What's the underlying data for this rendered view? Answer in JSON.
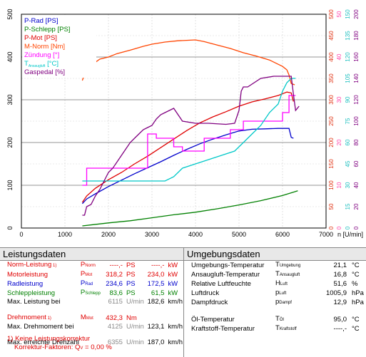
{
  "chart_data": {
    "type": "line",
    "x_unit_label": "n [U/min]",
    "xlim": [
      0,
      7000
    ],
    "x_ticks": [
      "0",
      "1000",
      "2000",
      "3000",
      "4000",
      "5000",
      "6000",
      "7000"
    ],
    "left_axis": {
      "ylim": [
        0,
        500
      ],
      "ticks": [
        "0",
        "100",
        "200",
        "300",
        "400",
        "500"
      ]
    },
    "right_axes": [
      {
        "color": "#e03010",
        "ticks": [
          "0",
          "50",
          "100",
          "150",
          "200",
          "250",
          "300",
          "350",
          "400",
          "450",
          "500"
        ]
      },
      {
        "color": "#ff44aa",
        "ticks": [
          "0",
          "10",
          "20",
          "30",
          "40",
          "50"
        ]
      },
      {
        "color": "#20c0c0",
        "ticks": [
          "0",
          "15",
          "30",
          "45",
          "60",
          "75",
          "90",
          "105",
          "120",
          "135",
          "150"
        ]
      },
      {
        "color": "#800080",
        "ticks": [
          "0",
          "20",
          "40",
          "60",
          "80",
          "100",
          "120",
          "140",
          "160",
          "180",
          "200"
        ]
      }
    ],
    "legend": [
      {
        "label": "P-Rad [PS]",
        "color": "#0000cc"
      },
      {
        "label": "P-Schlepp [PS]",
        "color": "#008000"
      },
      {
        "label": "P-Mot [PS]",
        "color": "#e00000"
      },
      {
        "label": "M-Norm [Nm]",
        "color": "#ff4400"
      },
      {
        "label": "Zündung [°]",
        "color": "#ff00ff"
      },
      {
        "label": "T",
        "sub": "Ansaugluft",
        "after": " [°C]",
        "color": "#00c8c8"
      },
      {
        "label": "Gaspedal [%]",
        "color": "#800080"
      }
    ],
    "series": [
      {
        "name": "P-Rad [PS]",
        "color": "#0000cc",
        "points": [
          [
            1400,
            57
          ],
          [
            1500,
            68
          ],
          [
            1700,
            80
          ],
          [
            2000,
            97
          ],
          [
            2300,
            112
          ],
          [
            2600,
            127
          ],
          [
            2900,
            141
          ],
          [
            3200,
            155
          ],
          [
            3500,
            170
          ],
          [
            3800,
            184
          ],
          [
            4100,
            197
          ],
          [
            4400,
            208
          ],
          [
            4700,
            218
          ],
          [
            5000,
            227
          ],
          [
            5300,
            231
          ],
          [
            5600,
            232
          ],
          [
            5900,
            233
          ],
          [
            6150,
            233
          ],
          [
            6200,
            212
          ],
          [
            6250,
            210
          ]
        ]
      },
      {
        "name": "P-Schlepp [PS]",
        "color": "#008000",
        "points": [
          [
            1400,
            5
          ],
          [
            2000,
            12
          ],
          [
            2500,
            17
          ],
          [
            3000,
            24
          ],
          [
            3500,
            31
          ],
          [
            4000,
            37
          ],
          [
            4500,
            45
          ],
          [
            5000,
            54
          ],
          [
            5500,
            64
          ],
          [
            6000,
            76
          ],
          [
            6350,
            87
          ]
        ]
      },
      {
        "name": "P-Mot [PS]",
        "color": "#e00000",
        "points": [
          [
            1400,
            60
          ],
          [
            1500,
            75
          ],
          [
            1700,
            93
          ],
          [
            2000,
            113
          ],
          [
            2300,
            130
          ],
          [
            2600,
            150
          ],
          [
            2900,
            168
          ],
          [
            3200,
            188
          ],
          [
            3500,
            208
          ],
          [
            3800,
            228
          ],
          [
            4100,
            246
          ],
          [
            4400,
            260
          ],
          [
            4700,
            272
          ],
          [
            5000,
            285
          ],
          [
            5300,
            295
          ],
          [
            5600,
            302
          ],
          [
            5900,
            310
          ],
          [
            6100,
            318
          ],
          [
            6200,
            316
          ],
          [
            6250,
            296
          ]
        ]
      },
      {
        "name": "M-Norm [Nm]",
        "color": "#ff4400",
        "points": [
          [
            1400,
            345
          ],
          [
            1450,
            360
          ],
          [
            1600,
            380
          ],
          [
            1800,
            395
          ],
          [
            2000,
            400
          ],
          [
            2200,
            408
          ],
          [
            2500,
            416
          ],
          [
            2800,
            425
          ],
          [
            3000,
            430
          ],
          [
            3300,
            435
          ],
          [
            3600,
            438
          ],
          [
            4000,
            440
          ],
          [
            4200,
            436
          ],
          [
            4500,
            428
          ],
          [
            4800,
            420
          ],
          [
            5100,
            410
          ],
          [
            5400,
            402
          ],
          [
            5700,
            393
          ],
          [
            6000,
            378
          ],
          [
            6100,
            370
          ],
          [
            6150,
            358
          ],
          [
            6200,
            338
          ],
          [
            6280,
            335
          ]
        ]
      },
      {
        "name": "Zündung [°]",
        "color": "#ff00ff",
        "points": [
          [
            1400,
            10
          ],
          [
            1500,
            10
          ],
          [
            1500,
            14
          ],
          [
            2900,
            14
          ],
          [
            2900,
            22
          ],
          [
            3100,
            22
          ],
          [
            3100,
            21
          ],
          [
            3500,
            21
          ],
          [
            3500,
            19
          ],
          [
            3700,
            19
          ],
          [
            3700,
            18
          ],
          [
            4200,
            18
          ],
          [
            4200,
            21
          ],
          [
            4800,
            21
          ],
          [
            4800,
            23
          ],
          [
            5100,
            23
          ],
          [
            5100,
            25
          ],
          [
            6000,
            25
          ],
          [
            6000,
            27
          ],
          [
            6150,
            27
          ],
          [
            6150,
            31
          ],
          [
            6300,
            31
          ]
        ]
      },
      {
        "name": "T Ansaugluft [°C]",
        "color": "#00c8c8",
        "points": [
          [
            1400,
            33
          ],
          [
            2000,
            33
          ],
          [
            2500,
            33
          ],
          [
            3000,
            33
          ],
          [
            3300,
            33
          ],
          [
            3500,
            36
          ],
          [
            3700,
            42
          ],
          [
            4000,
            45
          ],
          [
            4300,
            48
          ],
          [
            4600,
            51
          ],
          [
            4900,
            54
          ],
          [
            5200,
            63
          ],
          [
            5500,
            72
          ],
          [
            5700,
            81
          ],
          [
            5900,
            87
          ],
          [
            6000,
            96
          ],
          [
            6100,
            102
          ],
          [
            6200,
            105
          ],
          [
            6300,
            105
          ]
        ]
      },
      {
        "name": "Gaspedal [%]",
        "color": "#800080",
        "points": [
          [
            1400,
            12
          ],
          [
            1450,
            12
          ],
          [
            1500,
            20
          ],
          [
            1600,
            22
          ],
          [
            1700,
            30
          ],
          [
            1800,
            36
          ],
          [
            1900,
            44
          ],
          [
            2000,
            52
          ],
          [
            2100,
            56
          ],
          [
            2200,
            62
          ],
          [
            2300,
            68
          ],
          [
            2400,
            74
          ],
          [
            2500,
            80
          ],
          [
            2600,
            84
          ],
          [
            2700,
            88
          ],
          [
            2800,
            92
          ],
          [
            2900,
            94
          ],
          [
            3000,
            96
          ],
          [
            3100,
            102
          ],
          [
            3200,
            106
          ],
          [
            3300,
            108
          ],
          [
            3500,
            112
          ],
          [
            3700,
            100
          ],
          [
            4000,
            98
          ],
          [
            4300,
            98
          ],
          [
            4700,
            97
          ],
          [
            4900,
            98
          ],
          [
            5000,
            110
          ],
          [
            5050,
            128
          ],
          [
            5100,
            132
          ],
          [
            5200,
            132
          ],
          [
            5500,
            140
          ],
          [
            5800,
            142
          ],
          [
            6200,
            142
          ],
          [
            6250,
            125
          ],
          [
            6300,
            110
          ],
          [
            6380,
            114
          ]
        ]
      }
    ]
  },
  "leistungsdaten": {
    "title": "Leistungsdaten",
    "rows": [
      {
        "label": "Norm-Leistung",
        "mark": "1)",
        "sym": "P",
        "sub": "Norm",
        "v1": "----,-",
        "u1": "PS",
        "v2": "----,-",
        "u2": "kW",
        "color": "#e00000",
        "gray": false
      },
      {
        "label": "Motorleistung",
        "mark": "",
        "sym": "P",
        "sub": "Mot",
        "v1": "318,2",
        "u1": "PS",
        "v2": "234,0",
        "u2": "kW",
        "color": "#e00000",
        "gray": false
      },
      {
        "label": "Radleistung",
        "mark": "",
        "sym": "P",
        "sub": "Rad",
        "v1": "234,6",
        "u1": "PS",
        "v2": "172,5",
        "u2": "kW",
        "color": "#0000cc",
        "gray": false
      },
      {
        "label": "Schleppleistung",
        "mark": "",
        "sym": "P",
        "sub": "Schlepp",
        "v1": "83,6",
        "u1": "PS",
        "v2": "61,5",
        "u2": "kW",
        "color": "#008000",
        "gray": false
      },
      {
        "label": "Max. Leistung bei",
        "mark": "",
        "sym": "",
        "sub": "",
        "v1": "6115",
        "u1": "U/min",
        "v2": "182,6",
        "u2": "km/h",
        "color": "#000000",
        "gray": true
      },
      {
        "label": "",
        "mark": "",
        "sym": "",
        "sub": "",
        "v1": "",
        "u1": "",
        "v2": "",
        "u2": "",
        "color": "#000000",
        "gray": false
      },
      {
        "label": "Drehmoment",
        "mark": "1)",
        "sym": "M",
        "sub": "Mot",
        "v1": "432,3",
        "u1": "Nm",
        "v2": "",
        "u2": "",
        "color": "#e00000",
        "gray": false
      },
      {
        "label": "Max. Drehmoment bei",
        "mark": "",
        "sym": "",
        "sub": "",
        "v1": "4125",
        "u1": "U/min",
        "v2": "123,1",
        "u2": "km/h",
        "color": "#000000",
        "gray": true
      },
      {
        "label": "",
        "mark": "",
        "sym": "",
        "sub": "",
        "v1": "",
        "u1": "",
        "v2": "",
        "u2": "",
        "color": "#000000",
        "gray": false
      },
      {
        "label": "Max. erreichte Drehzahl",
        "mark": "",
        "sym": "",
        "sub": "",
        "v1": "6355",
        "u1": "U/min",
        "v2": "187,0",
        "u2": "km/h",
        "color": "#000000",
        "gray": true
      }
    ],
    "footnote1": "1) Keine Leistungskorrektur",
    "footnote2_a": "Korrektur-Faktoren: Q",
    "footnote2_sub": "V",
    "footnote2_b": " =  0,00 %"
  },
  "umgebungsdaten": {
    "title": "Umgebungsdaten",
    "rows": [
      {
        "label": "Umgebungs-Temperatur",
        "sym": "T",
        "sub": "Umgebung",
        "value": "21,1",
        "unit": "°C"
      },
      {
        "label": "Ansaugluft-Temperatur",
        "sym": "T",
        "sub": "Ansaugluft",
        "value": "16,8",
        "unit": "°C"
      },
      {
        "label": "Relative Luftfeuchte",
        "sym": "H",
        "sub": "Luft",
        "value": "51,6",
        "unit": "%"
      },
      {
        "label": "Luftdruck",
        "sym": "p",
        "sub": "Luft",
        "value": "1005,9",
        "unit": "hPa"
      },
      {
        "label": "Dampfdruck",
        "sym": "p",
        "sub": "Dampf",
        "value": "12,9",
        "unit": "hPa"
      },
      {
        "label": "",
        "sym": "",
        "sub": "",
        "value": "",
        "unit": ""
      },
      {
        "label": "Öl-Temperatur",
        "sym": "T",
        "sub": "Öl",
        "value": "95,0",
        "unit": "°C"
      },
      {
        "label": "Kraftstoff-Temperatur",
        "sym": "T",
        "sub": "Kraftstoff",
        "value": "----,-",
        "unit": "°C"
      }
    ]
  }
}
